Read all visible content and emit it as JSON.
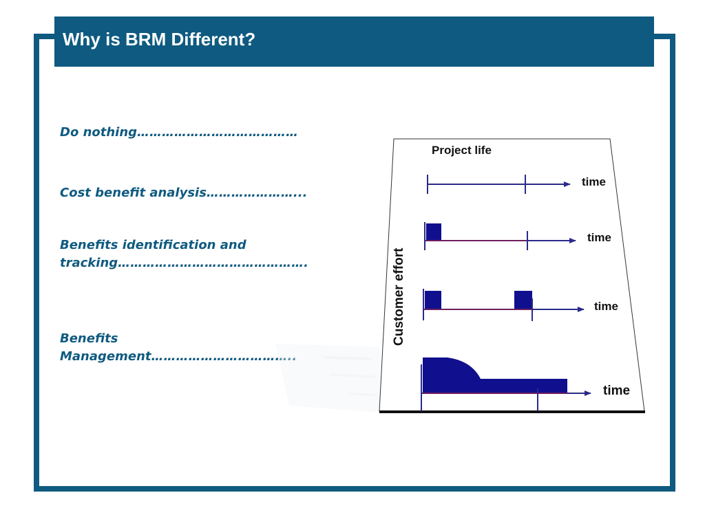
{
  "slide": {
    "title": "Why is BRM Different?"
  },
  "items": [
    {
      "line1": "Do nothing…………………………………"
    },
    {
      "line1": "Cost benefit analysis…………………..."
    },
    {
      "line1": "Benefits identification and",
      "line2": "tracking………………………………………."
    },
    {
      "line1": "Benefits",
      "line2": "Management…………………………….."
    }
  ],
  "diagram": {
    "top_label": "Project life",
    "y_axis_label": "Customer effort",
    "row_labels": [
      "time",
      "time",
      "time",
      "time"
    ]
  },
  "colors": {
    "brand": "#0f5a80",
    "effort_fill": "#10108e",
    "axis_line": "#2a2a8a",
    "baseline_red": "#b01030"
  }
}
